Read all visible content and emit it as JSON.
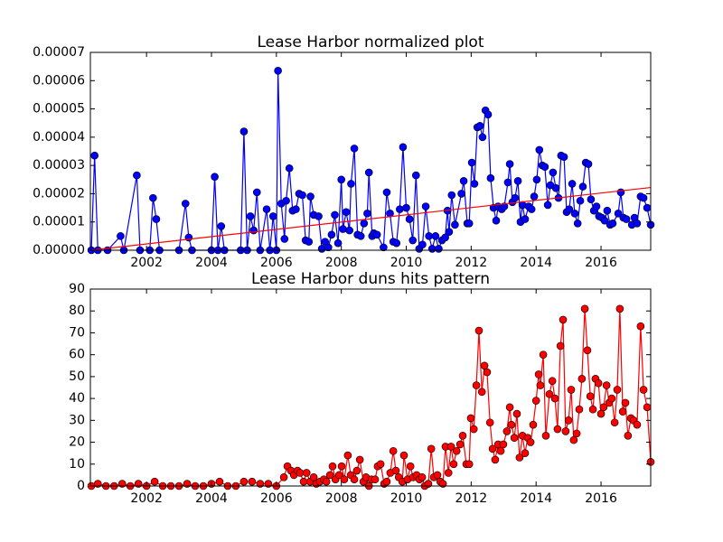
{
  "chart_data": [
    {
      "type": "line",
      "title": "Lease Harbor normalized plot",
      "xlim": [
        2000.27,
        2017.53
      ],
      "xticks": [
        2002,
        2004,
        2006,
        2008,
        2010,
        2012,
        2014,
        2016
      ],
      "ylim": [
        0,
        7e-05
      ],
      "yticks": [
        {
          "value": 0,
          "label": "0.00000"
        },
        {
          "value": 1e-05,
          "label": "0.00001"
        },
        {
          "value": 2e-05,
          "label": "0.00002"
        },
        {
          "value": 3e-05,
          "label": "0.00003"
        },
        {
          "value": 4e-05,
          "label": "0.00004"
        },
        {
          "value": 5e-05,
          "label": "0.00005"
        },
        {
          "value": 6e-05,
          "label": "0.00006"
        },
        {
          "value": 7e-05,
          "label": "0.00007"
        }
      ],
      "series": [
        {
          "color": "#0000ff",
          "marker": "o",
          "x": [
            2000.3,
            2000.4,
            2000.5,
            2000.8,
            2001.2,
            2001.3,
            2001.7,
            2001.8,
            2002.1,
            2002.2,
            2002.3,
            2002.4,
            2003.0,
            2003.2,
            2003.3,
            2003.4,
            2004.0,
            2004.1,
            2004.2,
            2004.3,
            2004.4,
            2004.9,
            2005.0,
            2005.1,
            2005.2,
            2005.3,
            2005.4,
            2005.5,
            2005.7,
            2005.8,
            2005.9,
            2006.0,
            2006.05,
            2006.15,
            2006.25,
            2006.3,
            2006.4,
            2006.5,
            2006.6,
            2006.7,
            2006.8,
            2006.9,
            2007.0,
            2007.05,
            2007.15,
            2007.3,
            2007.4,
            2007.5,
            2007.6,
            2007.7,
            2007.8,
            2007.9,
            2008.0,
            2008.05,
            2008.15,
            2008.25,
            2008.3,
            2008.4,
            2008.5,
            2008.6,
            2008.7,
            2008.8,
            2008.85,
            2008.95,
            2009.0,
            2009.1,
            2009.3,
            2009.4,
            2009.5,
            2009.6,
            2009.7,
            2009.8,
            2009.9,
            2010.0,
            2010.1,
            2010.2,
            2010.3,
            2010.4,
            2010.5,
            2010.6,
            2010.7,
            2010.8,
            2010.9,
            2011.0,
            2011.1,
            2011.2,
            2011.27,
            2011.32,
            2011.4,
            2011.5,
            2011.7,
            2011.77,
            2011.88,
            2011.94,
            2012.02,
            2012.1,
            2012.19,
            2012.27,
            2012.35,
            2012.44,
            2012.52,
            2012.6,
            2012.69,
            2012.77,
            2012.83,
            2012.94,
            2013.02,
            2013.13,
            2013.19,
            2013.27,
            2013.35,
            2013.44,
            2013.52,
            2013.58,
            2013.66,
            2013.77,
            2013.86,
            2013.94,
            2014.02,
            2014.1,
            2014.19,
            2014.27,
            2014.36,
            2014.44,
            2014.52,
            2014.61,
            2014.69,
            2014.77,
            2014.86,
            2014.94,
            2015.02,
            2015.11,
            2015.19,
            2015.28,
            2015.36,
            2015.44,
            2015.53,
            2015.61,
            2015.69,
            2015.78,
            2015.86,
            2015.94,
            2016.03,
            2016.11,
            2016.19,
            2016.28,
            2016.36,
            2016.53,
            2016.61,
            2016.69,
            2016.78,
            2016.95,
            2017.03,
            2017.11,
            2017.22,
            2017.31,
            2017.42,
            2017.53
          ],
          "values": [
            0,
            3.35e-05,
            0,
            0,
            5e-06,
            0,
            2.65e-05,
            0,
            0,
            1.85e-05,
            1.1e-05,
            0,
            0,
            1.65e-05,
            4.5e-06,
            0,
            0,
            2.6e-05,
            0,
            8.5e-06,
            0,
            0,
            4.2e-05,
            0,
            1.2e-05,
            7e-06,
            2.05e-05,
            0,
            1.45e-05,
            0,
            1.2e-05,
            0,
            6.35e-05,
            1.65e-05,
            4e-06,
            1.75e-05,
            2.9e-05,
            1.4e-05,
            1.45e-05,
            2e-05,
            1.95e-05,
            3.5e-06,
            3e-06,
            1.9e-05,
            1.25e-05,
            1.2e-05,
            5e-07,
            3e-06,
            1e-06,
            5.5e-06,
            1.25e-05,
            2.5e-06,
            2.5e-05,
            7.5e-06,
            1.35e-05,
            7e-06,
            2.35e-05,
            3.6e-05,
            5.5e-06,
            5e-06,
            9.5e-06,
            1.3e-05,
            2.75e-05,
            5e-06,
            6e-06,
            5.5e-06,
            1e-06,
            2.05e-05,
            1.3e-05,
            3e-06,
            2.5e-06,
            1.45e-05,
            3.65e-05,
            1.5e-05,
            1.1e-05,
            3.5e-06,
            2.65e-05,
            5e-07,
            2e-06,
            1.55e-05,
            5e-06,
            5e-07,
            5e-06,
            5e-07,
            3.5e-06,
            4.5e-06,
            1.4e-05,
            6.5e-06,
            1.95e-05,
            9e-06,
            2e-05,
            2.45e-05,
            9.5e-06,
            9.5e-06,
            3.1e-05,
            2.35e-05,
            4.35e-05,
            4.4e-05,
            4e-05,
            4.95e-05,
            4.8e-05,
            2.55e-05,
            1.5e-05,
            1.05e-05,
            1.55e-05,
            1.45e-05,
            1.55e-05,
            2.4e-05,
            3.05e-05,
            1.7e-05,
            1.85e-05,
            2.45e-05,
            1e-05,
            1.6e-05,
            1.1e-05,
            1.55e-05,
            1.45e-05,
            1.9e-05,
            2.5e-05,
            3.55e-05,
            3e-05,
            2.95e-05,
            1.6e-05,
            2.3e-05,
            2.75e-05,
            2.2e-05,
            1.85e-05,
            3.35e-05,
            3.3e-05,
            1.35e-05,
            1.45e-05,
            2.35e-05,
            1.3e-05,
            9.5e-06,
            1.75e-05,
            2.25e-05,
            3.1e-05,
            3.05e-05,
            1.8e-05,
            1.4e-05,
            1.55e-05,
            1.2e-05,
            1.15e-05,
            1.05e-05,
            1.4e-05,
            9e-06,
            9.5e-06,
            1.3e-05,
            2.05e-05,
            1.15e-05,
            1.1e-05,
            9e-06,
            1.15e-05,
            9.5e-06,
            1.9e-05,
            1.85e-05,
            1.5e-05,
            9e-06
          ]
        },
        {
          "color": "#ff0000",
          "x": [
            2000.27,
            2017.53
          ],
          "values": [
            0,
            2.22e-05
          ]
        }
      ]
    },
    {
      "type": "line",
      "title": "Lease Harbor duns hits pattern",
      "xlim": [
        2000.27,
        2017.53
      ],
      "xticks": [
        2002,
        2004,
        2006,
        2008,
        2010,
        2012,
        2014,
        2016
      ],
      "ylim": [
        0,
        90
      ],
      "yticks": [
        0,
        10,
        20,
        30,
        40,
        50,
        60,
        70,
        80,
        90
      ],
      "series": [
        {
          "color": "#ff0000",
          "marker": "o",
          "x": [
            2000.3,
            2000.5,
            2000.75,
            2001.0,
            2001.25,
            2001.5,
            2001.75,
            2002.0,
            2002.25,
            2002.5,
            2002.75,
            2003.0,
            2003.25,
            2003.5,
            2003.75,
            2004.0,
            2004.25,
            2004.5,
            2004.75,
            2005.0,
            2005.25,
            2005.5,
            2005.75,
            2006.0,
            2006.23,
            2006.34,
            2006.45,
            2006.54,
            2006.65,
            2006.73,
            2006.84,
            2006.93,
            2007.04,
            2007.15,
            2007.23,
            2007.34,
            2007.46,
            2007.54,
            2007.65,
            2007.73,
            2007.82,
            2007.93,
            2008.01,
            2008.09,
            2008.2,
            2008.29,
            2008.4,
            2008.48,
            2008.57,
            2008.68,
            2008.76,
            2008.85,
            2008.93,
            2009.04,
            2009.12,
            2009.21,
            2009.32,
            2009.4,
            2009.51,
            2009.6,
            2009.68,
            2009.77,
            2009.88,
            2009.93,
            2010.04,
            2010.13,
            2010.21,
            2010.32,
            2010.41,
            2010.49,
            2010.57,
            2010.68,
            2010.77,
            2010.85,
            2010.96,
            2011.05,
            2011.13,
            2011.21,
            2011.3,
            2011.38,
            2011.46,
            2011.55,
            2011.66,
            2011.74,
            2011.85,
            2011.94,
            2011.99,
            2012.08,
            2012.16,
            2012.24,
            2012.33,
            2012.41,
            2012.49,
            2012.58,
            2012.66,
            2012.74,
            2012.83,
            2012.91,
            2012.99,
            2013.1,
            2013.19,
            2013.24,
            2013.33,
            2013.41,
            2013.49,
            2013.58,
            2013.66,
            2013.74,
            2013.83,
            2013.91,
            2014.0,
            2014.08,
            2014.13,
            2014.22,
            2014.3,
            2014.41,
            2014.5,
            2014.58,
            2014.66,
            2014.75,
            2014.83,
            2014.91,
            2015.0,
            2015.08,
            2015.16,
            2015.25,
            2015.33,
            2015.41,
            2015.5,
            2015.58,
            2015.67,
            2015.75,
            2015.83,
            2015.92,
            2016.0,
            2016.08,
            2016.17,
            2016.25,
            2016.33,
            2016.42,
            2016.5,
            2016.58,
            2016.67,
            2016.75,
            2016.83,
            2016.92,
            2017.0,
            2017.11,
            2017.22,
            2017.31,
            2017.42,
            2017.53
          ],
          "values": [
            0,
            1,
            0,
            0,
            1,
            0,
            1,
            0,
            2,
            0,
            0,
            0,
            1,
            0,
            0,
            1,
            2,
            0,
            0,
            2,
            2,
            1,
            1,
            0,
            4,
            9,
            7,
            5,
            7,
            6,
            2,
            6,
            2,
            4,
            1,
            2,
            3,
            2,
            5,
            9,
            3,
            5,
            9,
            3,
            14,
            5,
            3,
            7,
            12,
            2,
            4,
            0,
            3,
            3,
            9,
            10,
            1,
            2,
            6,
            16,
            7,
            4,
            2,
            14,
            3,
            9,
            4,
            5,
            3,
            4,
            0,
            1,
            17,
            4,
            5,
            2,
            1,
            18,
            6,
            18,
            10,
            16,
            19,
            23,
            10,
            10,
            31,
            26,
            46,
            71,
            43,
            55,
            52,
            29,
            17,
            12,
            19,
            16,
            19,
            25,
            36,
            28,
            22,
            33,
            13,
            23,
            15,
            22,
            20,
            28,
            39,
            51,
            46,
            60,
            23,
            42,
            48,
            40,
            26,
            64,
            76,
            25,
            30,
            44,
            21,
            24,
            35,
            49,
            81,
            62,
            41,
            35,
            49,
            47,
            33,
            36,
            46,
            38,
            40,
            29,
            44,
            81,
            34,
            38,
            23,
            31,
            30,
            28,
            73,
            44,
            36,
            11
          ]
        }
      ]
    }
  ]
}
